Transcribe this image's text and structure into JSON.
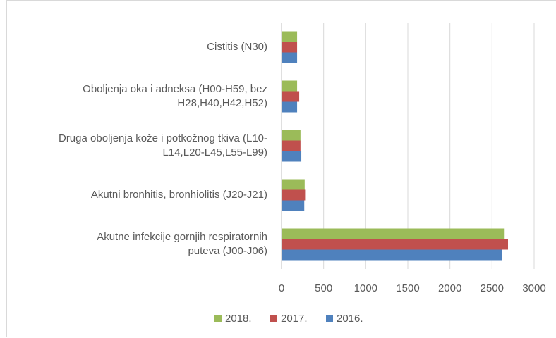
{
  "chart_data": {
    "type": "bar",
    "orientation": "horizontal",
    "categories": [
      "Cistitis (N30)",
      "Oboljenja oka i adneksa (H00-H59, bez\nH28,H40,H42,H52)",
      "Druga oboljenja kože i potkožnog tkiva (L10-\nL14,L20-L45,L55-L99)",
      "Akutni bronhitis, bronhiolitis (J20-J21)",
      "Akutne infekcije gornjih respiratornih\nputeva (J00-J06)"
    ],
    "series": [
      {
        "name": "2018.",
        "color": "#9bbb59",
        "values": [
          185,
          185,
          225,
          275,
          2650
        ]
      },
      {
        "name": "2017.",
        "color": "#c0504d",
        "values": [
          185,
          210,
          225,
          280,
          2690
        ]
      },
      {
        "name": "2016.",
        "color": "#4f81bd",
        "values": [
          185,
          185,
          235,
          270,
          2615
        ]
      }
    ],
    "xlim": [
      0,
      3000
    ],
    "xticks": [
      0,
      500,
      1000,
      1500,
      2000,
      2500,
      3000
    ],
    "grid": true,
    "legend": "bottom"
  }
}
